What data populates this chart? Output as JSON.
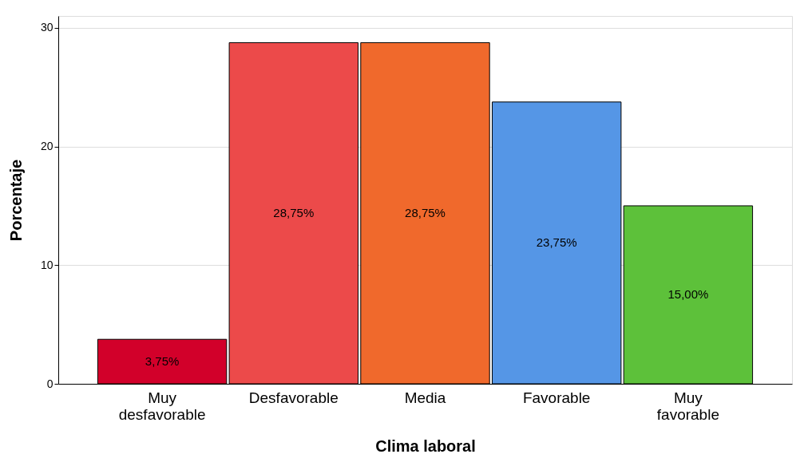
{
  "chart_data": {
    "type": "bar",
    "xlabel": "Clima laboral",
    "ylabel": "Porcentaje",
    "categories": [
      "Muy desfavorable",
      "Desfavorable",
      "Media",
      "Favorable",
      "Muy favorable"
    ],
    "values": [
      3.75,
      28.75,
      28.75,
      23.75,
      15.0
    ],
    "colors": [
      "#d2002a",
      "#ec4a4a",
      "#f0692c",
      "#5596e6",
      "#5dc13a"
    ],
    "value_labels": [
      "3,75%",
      "28,75%",
      "28,75%",
      "23,75%",
      "15,00%"
    ],
    "ylim": [
      0,
      31
    ],
    "yticks": [
      0,
      10,
      20,
      30
    ],
    "grid": "y",
    "legend": false
  }
}
